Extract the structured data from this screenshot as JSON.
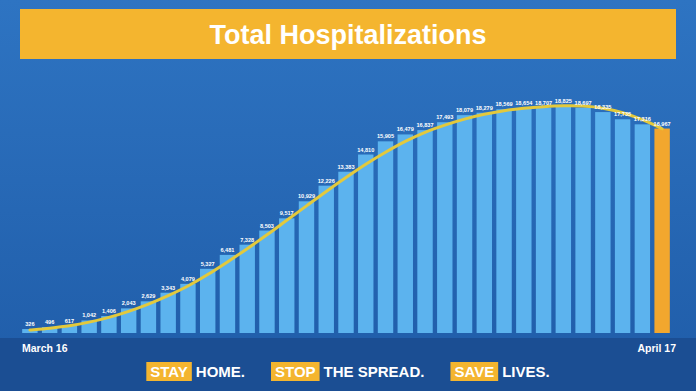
{
  "chart_data": {
    "type": "bar",
    "title": "Total Hospitalizations",
    "categories": [
      "March 16",
      null,
      null,
      null,
      null,
      null,
      null,
      null,
      null,
      null,
      null,
      null,
      null,
      null,
      null,
      null,
      null,
      null,
      null,
      null,
      null,
      null,
      null,
      null,
      null,
      null,
      null,
      null,
      null,
      null,
      null,
      null,
      "April 17"
    ],
    "series": [
      {
        "type": "bar",
        "colors": [
          "#5cb3ee",
          "#5cb3ee",
          "#5cb3ee",
          "#5cb3ee",
          "#5cb3ee",
          "#5cb3ee",
          "#5cb3ee",
          "#5cb3ee",
          "#5cb3ee",
          "#5cb3ee",
          "#5cb3ee",
          "#5cb3ee",
          "#5cb3ee",
          "#5cb3ee",
          "#5cb3ee",
          "#5cb3ee",
          "#5cb3ee",
          "#5cb3ee",
          "#5cb3ee",
          "#5cb3ee",
          "#5cb3ee",
          "#5cb3ee",
          "#5cb3ee",
          "#5cb3ee",
          "#5cb3ee",
          "#5cb3ee",
          "#5cb3ee",
          "#5cb3ee",
          "#5cb3ee",
          "#5cb3ee",
          "#5cb3ee",
          "#5cb3ee",
          "#f2a72e"
        ],
        "values": [
          326,
          496,
          617,
          1042,
          1406,
          2043,
          2629,
          3343,
          4079,
          5327,
          6481,
          7328,
          8503,
          9517,
          10929,
          12226,
          13383,
          14810,
          15905,
          16479,
          16837,
          17493,
          18079,
          18279,
          18569,
          18654,
          18707,
          18825,
          18697,
          18335,
          17735,
          17316,
          16967
        ],
        "value_labels": [
          "326",
          "496",
          "617",
          "1,042",
          "1,406",
          "2,043",
          "2,629",
          "3,343",
          "4,079",
          "5,327",
          "6,481",
          "7,328",
          "8,503",
          "9,517",
          "10,929",
          "12,226",
          "13,383",
          "14,810",
          "15,905",
          "16,479",
          "16,837",
          "17,493",
          "18,079",
          "18,279",
          "18,569",
          "18,654",
          "18,707",
          "18,825",
          "18,697",
          "18,335",
          "17,735",
          "17,316",
          "16,967"
        ]
      },
      {
        "type": "line",
        "color": "#e3c93c",
        "values": [
          250,
          400,
          600,
          900,
          1300,
          1800,
          2400,
          3100,
          3900,
          4850,
          5900,
          7000,
          8150,
          9350,
          10550,
          11750,
          12900,
          14000,
          15000,
          15900,
          16650,
          17250,
          17750,
          18150,
          18450,
          18650,
          18780,
          18850,
          18830,
          18650,
          18280,
          17700,
          16950
        ]
      }
    ],
    "ylim": [
      0,
      20000
    ],
    "tick_labels": "x",
    "data_labels": true,
    "annotations": [
      {
        "highlight": "STAY",
        "text": "HOME."
      },
      {
        "highlight": "STOP",
        "text": "THE SPREAD."
      },
      {
        "highlight": "SAVE",
        "text": "LIVES."
      }
    ]
  }
}
